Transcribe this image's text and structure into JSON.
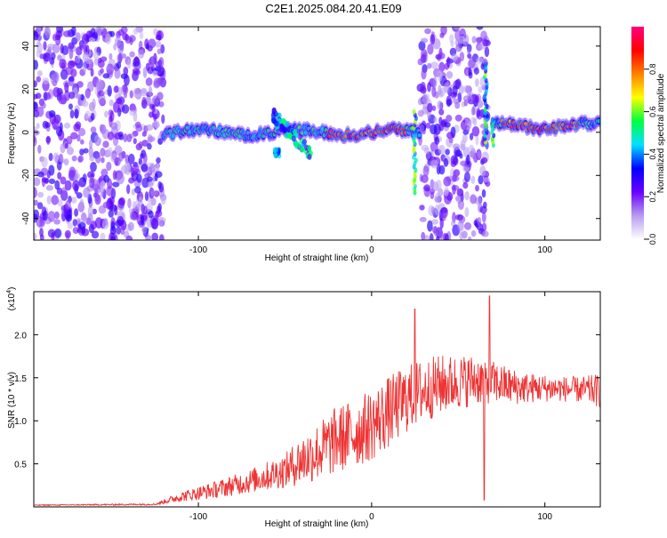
{
  "figure": {
    "title": "C2E1.2025.084.20.41.E09"
  },
  "chart_data": [
    {
      "type": "heatmap",
      "xlabel": "Height of straight line (km)",
      "ylabel": "Frequency (Hz)",
      "xlim": [
        -195,
        132
      ],
      "ylim": [
        -50,
        49
      ],
      "xticks": [
        -100,
        0,
        100
      ],
      "yticks": [
        -40,
        -20,
        0,
        20,
        40
      ],
      "colorbar": {
        "label": "Normalized spectral amplitude",
        "range": [
          0,
          1
        ],
        "ticks": [
          0.0,
          0.2,
          0.4,
          0.6,
          0.8
        ],
        "tick_labels": [
          "0.0",
          "0.2",
          "0.4",
          "0.6",
          "0.8"
        ],
        "colors": [
          "#ffffff",
          "#b79cf0",
          "#6a00ff",
          "#0000ff",
          "#00e0ff",
          "#00ff40",
          "#ffff00",
          "#ff8000",
          "#ff0000",
          "#ff0080"
        ]
      },
      "features": [
        {
          "region": "noise",
          "x": [
            -195,
            -120
          ],
          "y": [
            -50,
            49
          ]
        },
        {
          "region": "band",
          "x": [
            -120,
            28
          ],
          "center_hz": 0,
          "note": "ridge near 0 Hz with peaks ~0.9 between -25 and 20 km"
        },
        {
          "region": "branch",
          "x": [
            -57,
            -35
          ],
          "y": [
            -12,
            10
          ]
        },
        {
          "region": "noise",
          "x": [
            28,
            67
          ],
          "y": [
            -50,
            49
          ]
        },
        {
          "region": "band",
          "x": [
            70,
            132
          ],
          "center_hz": 3
        }
      ]
    },
    {
      "type": "line",
      "xlabel": "Height of straight line (km)",
      "ylabel": "SNR (10 * v/v)",
      "y_multiplier": "(x10^4)",
      "xlim": [
        -195,
        132
      ],
      "ylim": [
        0,
        2.5
      ],
      "xticks": [
        -100,
        0,
        100
      ],
      "yticks": [
        0.5,
        1.0,
        1.5,
        2.0
      ],
      "ytick_labels": [
        "0.5",
        "1.0",
        "1.5",
        "2.0"
      ],
      "series": [
        {
          "color": "#ee3333",
          "envelope_x": [
            -195,
            -125,
            -110,
            -90,
            -70,
            -50,
            -40,
            -30,
            -20,
            -10,
            0,
            10,
            20,
            30,
            40,
            50,
            60,
            70,
            80,
            90,
            100,
            110,
            120,
            132
          ],
          "envelope_y": [
            0.02,
            0.03,
            0.12,
            0.2,
            0.3,
            0.42,
            0.55,
            0.65,
            0.78,
            0.85,
            0.95,
            1.1,
            1.25,
            1.35,
            1.42,
            1.45,
            1.48,
            1.45,
            1.4,
            1.38,
            1.38,
            1.37,
            1.36,
            1.35
          ],
          "noise_amplitude": [
            0.005,
            0.01,
            0.06,
            0.1,
            0.14,
            0.2,
            0.3,
            0.35,
            0.4,
            0.4,
            0.42,
            0.42,
            0.4,
            0.38,
            0.35,
            0.32,
            0.3,
            0.25,
            0.22,
            0.18,
            0.16,
            0.15,
            0.15,
            0.2
          ],
          "peaks": [
            {
              "x": 68,
              "y": 2.45
            },
            {
              "x": 25,
              "y": 2.3
            },
            {
              "x": 65,
              "y": 0.08
            }
          ]
        }
      ]
    }
  ]
}
